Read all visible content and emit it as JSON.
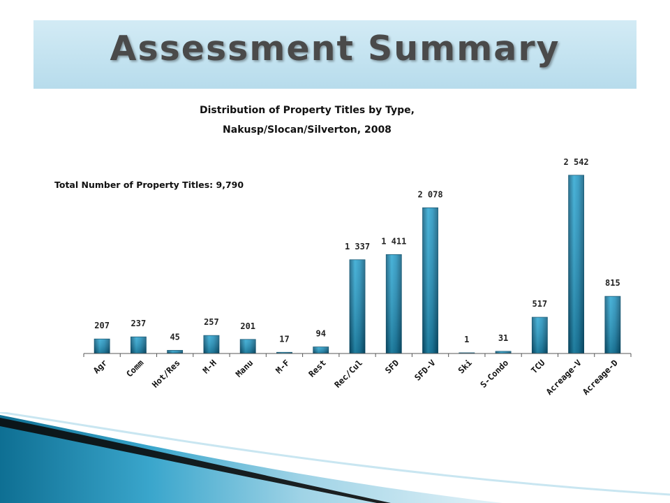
{
  "slide": {
    "title": "Assessment Summary"
  },
  "chart_data": {
    "type": "bar",
    "title": "Distribution of Property Titles by Type,",
    "subtitle": "Nakusp/Slocan/Silverton, 2008",
    "annotation": "Total Number of Property Titles: 9,790",
    "categories": [
      "Agr",
      "Comm",
      "Hot/Res",
      "M-H",
      "Manu",
      "M-F",
      "Rest",
      "Rec/Cul",
      "SFD",
      "SFD-V",
      "Ski",
      "S-Condo",
      "TCU",
      "Acreage-V",
      "Acreage-D"
    ],
    "values": [
      207,
      237,
      45,
      257,
      201,
      17,
      94,
      1337,
      1411,
      2078,
      1,
      31,
      517,
      2542,
      815
    ],
    "value_labels": [
      "207",
      "237",
      "45",
      "257",
      "201",
      "17",
      "94",
      "1 337",
      "1 411",
      "2 078",
      "1",
      "31",
      "517",
      "2 542",
      "815"
    ],
    "ylim": [
      0,
      2600
    ],
    "grid": false,
    "bar_color": "#1e8fbb"
  }
}
